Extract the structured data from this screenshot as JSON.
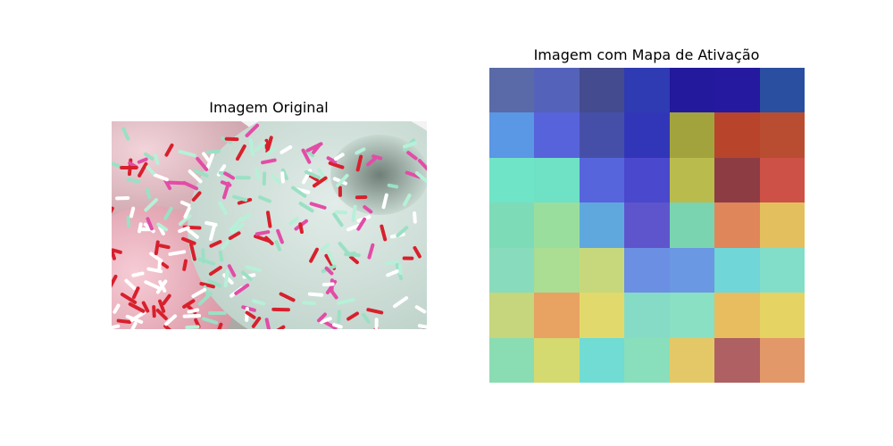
{
  "panels": {
    "left_title": "Imagem Original",
    "right_title": "Imagem com Mapa de Ativação"
  },
  "photo": {
    "subject": "Frosted donuts with colorful sprinkles",
    "frosting_colors": [
      "#e9c9cf",
      "#d8e7df",
      "#f0bcc8"
    ],
    "sprinkle_colors": [
      "#e24ca7",
      "#9be0c5",
      "#d8202d",
      "#ffffff",
      "#b7f0d8"
    ]
  },
  "activation_map": {
    "grid": [
      7,
      7
    ],
    "cells": [
      [
        "#5a6aa8",
        "#5562b9",
        "#444b8f",
        "#2f3bb2",
        "#23199c",
        "#24199f",
        "#2a4fa0"
      ],
      [
        "#5a97e4",
        "#5763da",
        "#464fa7",
        "#3136b8",
        "#a3a33e",
        "#b8452b",
        "#b94d32"
      ],
      [
        "#70e4c6",
        "#6fe1c5",
        "#5665dc",
        "#4a48cd",
        "#b9bc4d",
        "#8d3c44",
        "#cd5146"
      ],
      [
        "#7ddbb8",
        "#9ade9e",
        "#5fa8dd",
        "#5e55cc",
        "#7ad4b0",
        "#e0865b",
        "#e3c05d"
      ],
      [
        "#88dbbd",
        "#abdd92",
        "#c7d87c",
        "#6b8fe2",
        "#6a98e2",
        "#70d6d7",
        "#82dec8"
      ],
      [
        "#c5d67c",
        "#e8a262",
        "#e2d96c",
        "#86dbc6",
        "#8ae0c3",
        "#e8bd5f",
        "#e5d364"
      ],
      [
        "#8adcb3",
        "#d4da6f",
        "#70dcd3",
        "#89dfbb",
        "#e4c867",
        "#ae6062",
        "#e29869"
      ]
    ]
  }
}
